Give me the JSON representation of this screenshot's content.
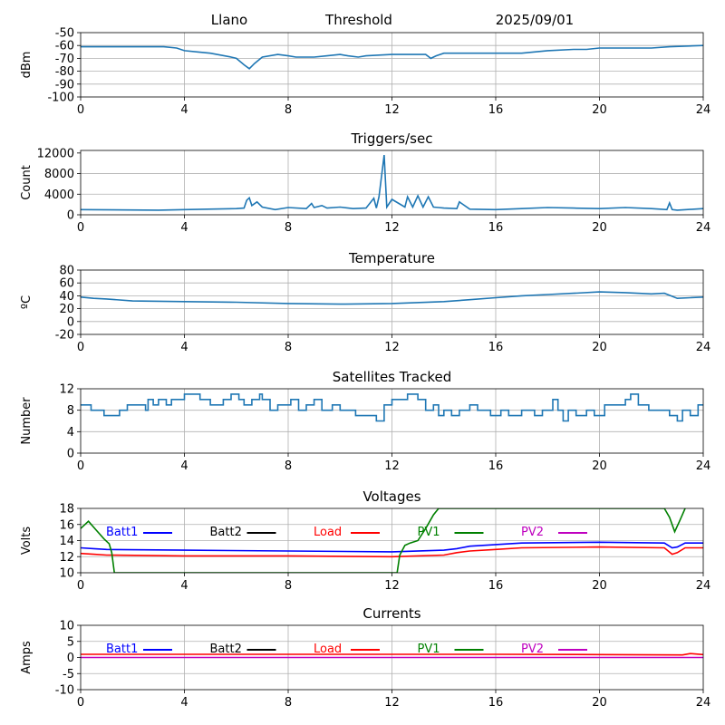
{
  "header": {
    "station": "Llano",
    "mode": "Threshold",
    "date": "2025/09/01"
  },
  "colors": {
    "series_default": "#1f77b4",
    "grid": "#b0b0b0",
    "batt1": "#0000ff",
    "batt2": "#000000",
    "load": "#ff0000",
    "pv1": "#008000",
    "pv2": "#bf00bf"
  },
  "x_axis": {
    "range": [
      0,
      24
    ],
    "ticks": [
      0,
      4,
      8,
      12,
      16,
      20,
      24
    ]
  },
  "chart_data": [
    {
      "type": "line",
      "title": "",
      "ylabel": "dBm",
      "ylim": [
        -100,
        -50
      ],
      "yticks": [
        -100,
        -90,
        -80,
        -70,
        -60,
        -50
      ],
      "grid": true,
      "series": [
        {
          "color": "#1f77b4",
          "x": [
            0,
            3.2,
            3.7,
            4.0,
            4.5,
            5.0,
            5.8,
            6.0,
            6.3,
            6.5,
            6.7,
            7.0,
            7.6,
            8.0,
            8.3,
            9.0,
            9.5,
            10.0,
            10.3,
            10.7,
            11.0,
            12.0,
            13.3,
            13.5,
            13.7,
            14.0,
            15.0,
            16.0,
            17.0,
            17.5,
            18.0,
            19.0,
            19.5,
            20.0,
            21.0,
            22.0,
            22.7,
            24.0
          ],
          "y": [
            -61,
            -61,
            -62,
            -64,
            -65,
            -66,
            -69,
            -70,
            -75,
            -78,
            -74,
            -69,
            -67,
            -68,
            -69,
            -69,
            -68,
            -67,
            -68,
            -69,
            -68,
            -67,
            -67,
            -70,
            -68,
            -66,
            -66,
            -66,
            -66,
            -65,
            -64,
            -63,
            -63,
            -62,
            -62,
            -62,
            -61,
            -60
          ]
        }
      ]
    },
    {
      "type": "line",
      "title": "Triggers/sec",
      "ylabel": "Count",
      "ylim": [
        0,
        12500
      ],
      "yticks": [
        0,
        4000,
        8000,
        12000
      ],
      "grid": true,
      "series": [
        {
          "color": "#1f77b4",
          "x": [
            0,
            3.0,
            4.0,
            6.0,
            6.3,
            6.4,
            6.5,
            6.6,
            6.8,
            7.0,
            7.5,
            8.0,
            8.7,
            8.9,
            9.0,
            9.3,
            9.5,
            10.0,
            10.5,
            11.0,
            11.3,
            11.4,
            11.5,
            11.7,
            11.8,
            12.0,
            12.5,
            12.6,
            12.8,
            13.0,
            13.2,
            13.4,
            13.6,
            13.8,
            14.0,
            14.5,
            14.6,
            15.0,
            16.0,
            17.0,
            18.0,
            19.0,
            20.0,
            21.0,
            22.0,
            22.6,
            22.7,
            22.8,
            23.0,
            24.0
          ],
          "y": [
            1000,
            900,
            1000,
            1200,
            1300,
            2800,
            3300,
            1800,
            2500,
            1500,
            1000,
            1400,
            1200,
            2200,
            1400,
            1800,
            1300,
            1500,
            1200,
            1300,
            3200,
            1300,
            3500,
            11600,
            1500,
            3000,
            1500,
            3500,
            1500,
            3700,
            1500,
            3500,
            1500,
            1400,
            1300,
            1200,
            2500,
            1100,
            1000,
            1200,
            1400,
            1300,
            1200,
            1400,
            1200,
            1000,
            2300,
            1000,
            900,
            1200
          ]
        }
      ]
    },
    {
      "type": "line",
      "title": "Temperature",
      "ylabel": "ºC",
      "ylim": [
        -20,
        80
      ],
      "yticks": [
        -20,
        0,
        20,
        40,
        60,
        80
      ],
      "grid": true,
      "series": [
        {
          "color": "#1f77b4",
          "x": [
            0,
            0.5,
            1.0,
            2.0,
            4.0,
            6.0,
            8.0,
            10.0,
            12.0,
            14.0,
            15.0,
            16.0,
            17.0,
            18.0,
            19.0,
            20.0,
            21.0,
            22.0,
            22.5,
            23.0,
            23.5,
            24.0
          ],
          "y": [
            38,
            36,
            35,
            32,
            31,
            30,
            28,
            27,
            28,
            31,
            34,
            37,
            40,
            42,
            44,
            46,
            45,
            43,
            44,
            36,
            37,
            38
          ]
        }
      ]
    },
    {
      "type": "line",
      "title": "Satellites Tracked",
      "ylabel": "Number",
      "ylim": [
        0,
        12
      ],
      "yticks": [
        0,
        4,
        8,
        12
      ],
      "grid": true,
      "step": true,
      "series": [
        {
          "color": "#1f77b4",
          "x": [
            0,
            0.4,
            0.9,
            1.5,
            1.8,
            2.5,
            2.6,
            2.8,
            3.0,
            3.3,
            3.5,
            3.8,
            4.0,
            4.6,
            5.0,
            5.5,
            5.8,
            6.1,
            6.3,
            6.6,
            6.9,
            7.0,
            7.3,
            7.6,
            8.1,
            8.4,
            8.7,
            9.0,
            9.3,
            9.7,
            10.0,
            10.6,
            11.4,
            11.7,
            12.0,
            12.6,
            13.0,
            13.3,
            13.6,
            13.8,
            14.0,
            14.3,
            14.6,
            15.0,
            15.3,
            15.8,
            16.2,
            16.5,
            17.0,
            17.5,
            17.8,
            18.2,
            18.4,
            18.6,
            18.8,
            19.1,
            19.5,
            19.8,
            20.2,
            20.6,
            21.0,
            21.2,
            21.5,
            21.9,
            22.3,
            22.7,
            23.0,
            23.2,
            23.5,
            23.8,
            24.0
          ],
          "y": [
            9,
            8,
            7,
            8,
            9,
            8,
            10,
            9,
            10,
            9,
            10,
            10,
            11,
            10,
            9,
            10,
            11,
            10,
            9,
            10,
            11,
            10,
            8,
            9,
            10,
            8,
            9,
            10,
            8,
            9,
            8,
            7,
            6,
            9,
            10,
            11,
            10,
            8,
            9,
            7,
            8,
            7,
            8,
            9,
            8,
            7,
            8,
            7,
            8,
            7,
            8,
            10,
            8,
            6,
            8,
            7,
            8,
            7,
            9,
            9,
            10,
            11,
            9,
            8,
            8,
            7,
            6,
            8,
            7,
            9,
            9
          ]
        }
      ]
    },
    {
      "type": "line",
      "title": "Voltages",
      "ylabel": "Volts",
      "ylim": [
        10,
        18
      ],
      "yticks": [
        10,
        12,
        14,
        16,
        18
      ],
      "grid": true,
      "legend": [
        {
          "label": "Batt1",
          "color": "#0000ff"
        },
        {
          "label": "Batt2",
          "color": "#000000"
        },
        {
          "label": "Load",
          "color": "#ff0000"
        },
        {
          "label": "PV1",
          "color": "#008000"
        },
        {
          "label": "PV2",
          "color": "#bf00bf"
        }
      ],
      "series": [
        {
          "name": "Batt1",
          "color": "#0000ff",
          "x": [
            0,
            0.5,
            1.0,
            4.0,
            8.0,
            12.0,
            14.0,
            14.5,
            15.0,
            16.0,
            17.0,
            20.0,
            22.5,
            22.8,
            23.0,
            23.3,
            24.0
          ],
          "y": [
            13.1,
            13.0,
            12.9,
            12.8,
            12.7,
            12.6,
            12.8,
            13.0,
            13.3,
            13.5,
            13.7,
            13.8,
            13.7,
            13.1,
            13.2,
            13.7,
            13.7
          ]
        },
        {
          "name": "Load",
          "color": "#ff0000",
          "x": [
            0,
            0.5,
            1.0,
            4.0,
            8.0,
            12.0,
            14.0,
            14.5,
            15.0,
            16.0,
            17.0,
            20.0,
            22.5,
            22.8,
            23.0,
            23.3,
            24.0
          ],
          "y": [
            12.4,
            12.3,
            12.2,
            12.1,
            12.1,
            12.0,
            12.2,
            12.5,
            12.7,
            12.9,
            13.1,
            13.2,
            13.1,
            12.3,
            12.5,
            13.1,
            13.1
          ]
        },
        {
          "name": "PV1",
          "color": "#008000",
          "x": [
            0,
            0.3,
            0.6,
            0.9,
            1.1,
            1.2,
            1.3,
            12.2,
            12.3,
            12.5,
            12.7,
            13.0,
            13.3,
            13.6,
            13.8,
            22.5,
            22.7,
            22.9,
            23.1,
            23.3
          ],
          "y": [
            15.5,
            16.4,
            15.3,
            14.2,
            13.6,
            12.5,
            10.0,
            10.0,
            12.2,
            13.4,
            13.7,
            14.0,
            15.5,
            17.2,
            18.0,
            18.0,
            16.9,
            15.1,
            16.5,
            18.0
          ]
        }
      ]
    },
    {
      "type": "line",
      "title": "Currents",
      "ylabel": "Amps",
      "ylim": [
        -10,
        10
      ],
      "yticks": [
        -10,
        -5,
        0,
        5,
        10
      ],
      "grid": true,
      "legend": [
        {
          "label": "Batt1",
          "color": "#0000ff"
        },
        {
          "label": "Batt2",
          "color": "#000000"
        },
        {
          "label": "Load",
          "color": "#ff0000"
        },
        {
          "label": "PV1",
          "color": "#008000"
        },
        {
          "label": "PV2",
          "color": "#bf00bf"
        }
      ],
      "series": [
        {
          "name": "Load",
          "color": "#ff0000",
          "x": [
            0,
            4,
            8,
            12,
            16,
            20,
            23.2,
            23.5,
            24
          ],
          "y": [
            1.0,
            1.0,
            1.0,
            1.0,
            1.0,
            0.9,
            0.8,
            1.2,
            0.9
          ]
        },
        {
          "name": "PV2",
          "color": "#bf00bf",
          "x": [
            0,
            24
          ],
          "y": [
            0,
            0
          ]
        }
      ]
    }
  ]
}
